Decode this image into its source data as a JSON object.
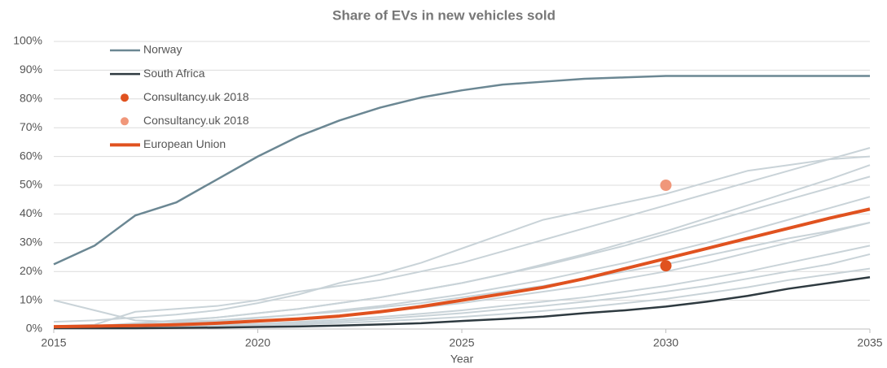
{
  "chart_data": {
    "type": "line",
    "title": "Share of EVs in new vehicles sold",
    "x_label": "Year",
    "x": [
      2015,
      2016,
      2017,
      2018,
      2019,
      2020,
      2021,
      2022,
      2023,
      2024,
      2025,
      2026,
      2027,
      2028,
      2029,
      2030,
      2031,
      2032,
      2033,
      2034,
      2035
    ],
    "xlim": [
      2015,
      2035
    ],
    "xticks": [
      2015,
      2020,
      2025,
      2030,
      2035
    ],
    "ylim": [
      0,
      100
    ],
    "yticks": [
      {
        "value": 0,
        "label": "0%"
      },
      {
        "value": 10,
        "label": "10%"
      },
      {
        "value": 20,
        "label": "20%"
      },
      {
        "value": 30,
        "label": "30%"
      },
      {
        "value": 40,
        "label": "40%"
      },
      {
        "value": 50,
        "label": "50%"
      },
      {
        "value": 60,
        "label": "60%"
      },
      {
        "value": 70,
        "label": "70%"
      },
      {
        "value": 80,
        "label": "80%"
      },
      {
        "value": 90,
        "label": "90%"
      },
      {
        "value": 100,
        "label": "100%"
      }
    ],
    "grid": true,
    "legend": "top-left",
    "background_series": [
      {
        "color": "#c9d3d8",
        "values": [
          2.5,
          3,
          4,
          5,
          6.5,
          9,
          12,
          16,
          19,
          23,
          28,
          33,
          38,
          41,
          44,
          47,
          51,
          55,
          57,
          59,
          60
        ]
      },
      {
        "color": "#c9d3d8",
        "values": [
          10,
          6.5,
          3,
          2.5,
          3,
          4,
          5,
          6,
          7.5,
          9,
          11,
          13,
          15,
          17.5,
          20,
          22.5,
          25.5,
          28.5,
          31.5,
          34,
          37
        ]
      },
      {
        "color": "#c9d3d8",
        "values": [
          1,
          1.5,
          6,
          7,
          8,
          10,
          13,
          15,
          17,
          20,
          23,
          27,
          31,
          35,
          39,
          43,
          47,
          51,
          55,
          59,
          63
        ]
      },
      {
        "color": "#c9d3d8",
        "values": [
          0.5,
          1,
          2,
          3,
          4,
          5.5,
          7,
          9,
          11,
          13.5,
          16,
          19,
          22,
          25.5,
          29,
          33,
          37,
          41,
          45,
          49,
          53
        ]
      },
      {
        "color": "#c9d3d8",
        "values": [
          0.5,
          0.8,
          1.3,
          2,
          2.8,
          3.8,
          5,
          6.5,
          8,
          10,
          12,
          14.5,
          17,
          20,
          23,
          26.5,
          30,
          34,
          38,
          42,
          46
        ]
      },
      {
        "color": "#c9d3d8",
        "values": [
          0.3,
          0.5,
          0.8,
          1.2,
          1.8,
          2.5,
          3.5,
          4.5,
          6,
          7.5,
          9,
          11,
          13,
          15,
          17.5,
          20,
          23,
          26.5,
          30,
          33.5,
          37
        ]
      },
      {
        "color": "#c9d3d8",
        "values": [
          0.3,
          0.4,
          0.6,
          0.9,
          1.3,
          1.8,
          2.5,
          3.3,
          4.2,
          5.3,
          6.5,
          8,
          9.5,
          11,
          13,
          15,
          17.5,
          20,
          23,
          26,
          29
        ]
      },
      {
        "color": "#c9d3d8",
        "values": [
          0.2,
          0.3,
          0.5,
          0.7,
          1,
          1.4,
          2,
          2.7,
          3.5,
          4.5,
          5.5,
          6.8,
          8,
          9.5,
          11,
          13,
          15,
          17.5,
          20,
          22.5,
          26
        ]
      },
      {
        "color": "#c9d3d8",
        "values": [
          0.5,
          1,
          1.8,
          2.8,
          4,
          5.5,
          7,
          9,
          11,
          13.5,
          16,
          19,
          22.5,
          26,
          30,
          34,
          38.5,
          43,
          47.5,
          52,
          57
        ]
      },
      {
        "color": "#c9d3d8",
        "values": [
          0.2,
          0.3,
          0.4,
          0.6,
          0.9,
          1.2,
          1.6,
          2.1,
          2.7,
          3.4,
          4.2,
          5.2,
          6.3,
          7.5,
          9,
          10.5,
          12.5,
          14.5,
          17,
          19,
          21
        ]
      }
    ],
    "series": [
      {
        "name": "Norway",
        "type": "line",
        "color": "#6b8793",
        "width": 2.5,
        "values": [
          22.5,
          29,
          39.5,
          44,
          52,
          60,
          67,
          72.5,
          77,
          80.5,
          83,
          85,
          86,
          87,
          87.5,
          88,
          88,
          88,
          88,
          88,
          88
        ]
      },
      {
        "name": "South Africa",
        "type": "line",
        "color": "#2e3a40",
        "width": 2.5,
        "values": [
          0.3,
          0.3,
          0.3,
          0.4,
          0.5,
          0.7,
          0.9,
          1.2,
          1.6,
          2,
          2.8,
          3.5,
          4.3,
          5.5,
          6.5,
          7.8,
          9.5,
          11.5,
          14,
          16,
          18
        ]
      },
      {
        "name": "Consultancy.uk 2018",
        "type": "scatter",
        "color": "#e0521f",
        "x": [
          2030
        ],
        "values": [
          22
        ]
      },
      {
        "name": "Consultancy.uk 2018",
        "type": "scatter",
        "color": "#f0977a",
        "x": [
          2030
        ],
        "values": [
          50
        ]
      },
      {
        "name": "European Union",
        "type": "line",
        "color": "#e0521f",
        "width": 4,
        "values": [
          0.8,
          1,
          1.2,
          1.5,
          2,
          2.8,
          3.5,
          4.5,
          6,
          7.8,
          10,
          12.2,
          14.5,
          17.5,
          21,
          24.5,
          28,
          31.5,
          35,
          38.5,
          41.7
        ]
      }
    ]
  }
}
